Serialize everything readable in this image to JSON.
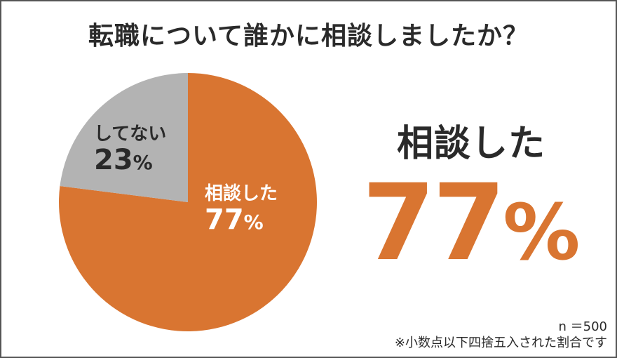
{
  "chart_data": {
    "type": "pie",
    "title": "転職について誰かに相談しましたか？",
    "categories": [
      "相談した",
      "してない"
    ],
    "values": [
      77,
      23
    ],
    "value_suffix": "%",
    "colors": [
      "#d97531",
      "#b3b3b3"
    ],
    "start": "top",
    "direction": "clockwise",
    "legend": "none"
  },
  "labels": {
    "no": {
      "name": "してない",
      "value": "23",
      "unit": "%"
    },
    "yes": {
      "name": "相談した",
      "value": "77",
      "unit": "%"
    }
  },
  "highlight": {
    "label": "相談した",
    "value": "77",
    "unit": "%"
  },
  "footnote": {
    "n": "n ＝500",
    "note": "※小数点以下四捨五入された割合です"
  },
  "colors": {
    "accent": "#d97531",
    "secondary": "#b3b3b3",
    "text": "#2a2a2a",
    "border": "#555555"
  }
}
